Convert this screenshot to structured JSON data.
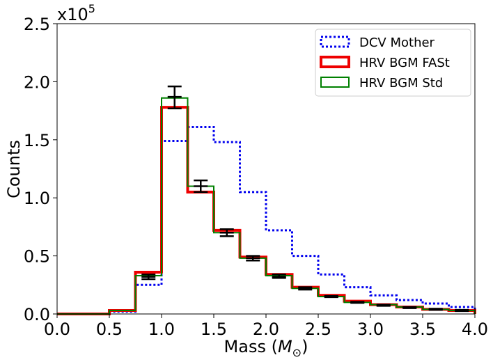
{
  "chart_data": {
    "type": "histogram-step",
    "xlabel_prefix": "Mass (",
    "xlabel_math": "M",
    "xlabel_sub": "⊙",
    "xlabel_suffix": ")",
    "ylabel": "Counts",
    "y_scale_base": "x10",
    "y_scale_exp": "5",
    "xlim": [
      0.0,
      4.0
    ],
    "ylim": [
      0.0,
      2.5
    ],
    "x_ticks": [
      0.0,
      0.5,
      1.0,
      1.5,
      2.0,
      2.5,
      3.0,
      3.5,
      4.0
    ],
    "x_tick_labels": [
      "0.0",
      "0.5",
      "1.0",
      "1.5",
      "2.0",
      "2.5",
      "3.0",
      "3.5",
      "4.0"
    ],
    "y_ticks": [
      0.0,
      0.5,
      1.0,
      1.5,
      2.0,
      2.5
    ],
    "y_tick_labels": [
      "0.0",
      "0.5",
      "1.0",
      "1.5",
      "2.0",
      "2.5"
    ],
    "bin_edges": [
      0.0,
      0.25,
      0.5,
      0.75,
      1.0,
      1.25,
      1.5,
      1.75,
      2.0,
      2.25,
      2.5,
      2.75,
      3.0,
      3.25,
      3.5,
      3.75,
      4.0
    ],
    "legend_position": "top-right",
    "grid": false,
    "series": [
      {
        "name": "DCV Mother",
        "color": "#0000ee",
        "style": "dotted",
        "values": [
          0.0,
          0.0,
          0.02,
          0.25,
          1.49,
          1.61,
          1.48,
          1.05,
          0.72,
          0.5,
          0.34,
          0.23,
          0.16,
          0.12,
          0.09,
          0.06
        ]
      },
      {
        "name": "HRV BGM FASt",
        "color": "#ee0000",
        "style": "solid-thick",
        "values": [
          0.0,
          0.0,
          0.03,
          0.36,
          1.78,
          1.05,
          0.72,
          0.49,
          0.34,
          0.23,
          0.16,
          0.11,
          0.08,
          0.06,
          0.04,
          0.03
        ]
      },
      {
        "name": "HRV BGM Std",
        "color": "#008000",
        "style": "solid",
        "values": [
          0.0,
          0.0,
          0.03,
          0.33,
          1.86,
          1.1,
          0.7,
          0.48,
          0.33,
          0.22,
          0.15,
          0.1,
          0.08,
          0.06,
          0.04,
          0.03
        ]
      }
    ],
    "error_bars": {
      "color": "#000000",
      "points": [
        {
          "x": 0.875,
          "center": 0.32,
          "low": 0.3,
          "high": 0.34
        },
        {
          "x": 1.125,
          "center": 1.87,
          "low": 1.77,
          "high": 1.96
        },
        {
          "x": 1.375,
          "center": 1.1,
          "low": 1.05,
          "high": 1.15
        },
        {
          "x": 1.625,
          "center": 0.7,
          "low": 0.67,
          "high": 0.73
        },
        {
          "x": 1.875,
          "center": 0.48,
          "low": 0.46,
          "high": 0.5
        },
        {
          "x": 2.125,
          "center": 0.32,
          "low": 0.31,
          "high": 0.34
        },
        {
          "x": 2.375,
          "center": 0.22,
          "low": 0.21,
          "high": 0.23
        },
        {
          "x": 2.625,
          "center": 0.15,
          "low": 0.145,
          "high": 0.155
        },
        {
          "x": 2.875,
          "center": 0.1,
          "low": 0.095,
          "high": 0.105
        },
        {
          "x": 3.125,
          "center": 0.075,
          "low": 0.07,
          "high": 0.08
        },
        {
          "x": 3.375,
          "center": 0.055,
          "low": 0.05,
          "high": 0.06
        },
        {
          "x": 3.625,
          "center": 0.04,
          "low": 0.035,
          "high": 0.045
        },
        {
          "x": 3.875,
          "center": 0.03,
          "low": 0.025,
          "high": 0.035
        }
      ]
    }
  }
}
